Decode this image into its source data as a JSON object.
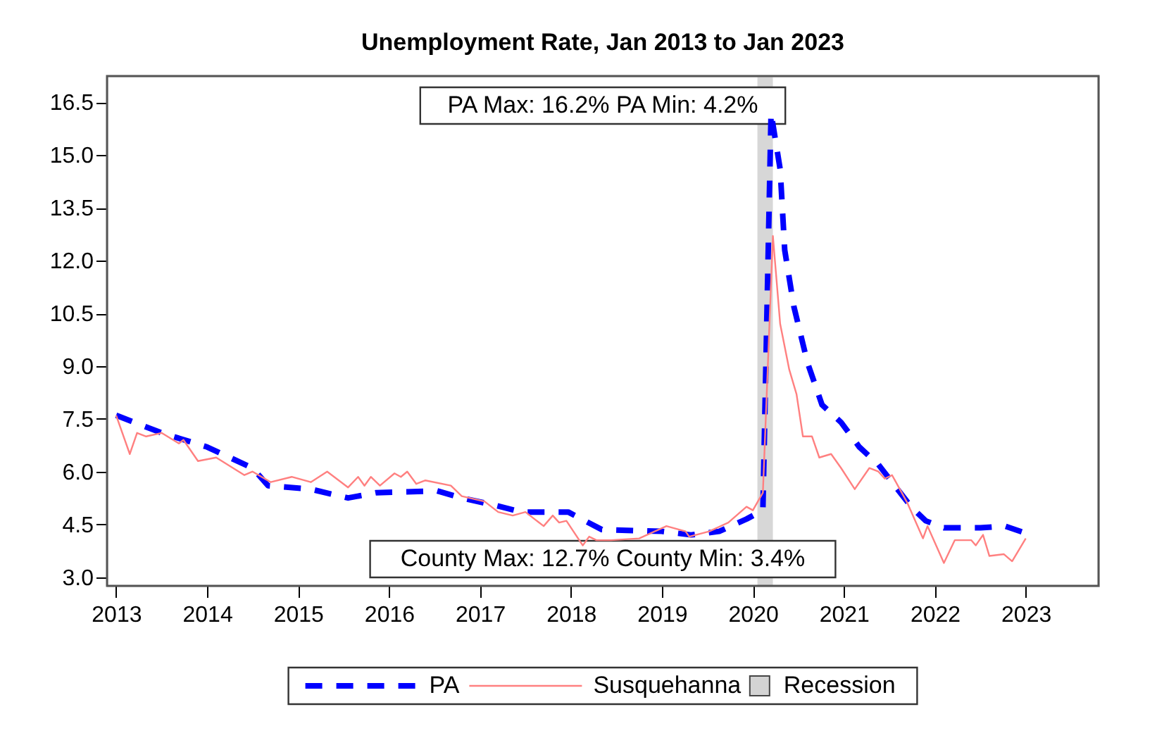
{
  "chart_data": {
    "type": "line",
    "title": "Unemployment Rate, Jan 2013 to Jan 2023",
    "xlim": [
      2012.9,
      2023.8
    ],
    "xticks": [
      2013,
      2014,
      2015,
      2016,
      2017,
      2018,
      2019,
      2020,
      2021,
      2022,
      2023
    ],
    "ylim": [
      2.75,
      17.25
    ],
    "yticks": [
      {
        "value": 3,
        "label": "3.0"
      },
      4.5,
      {
        "value": 6,
        "label": "6.0"
      },
      7.5,
      {
        "value": 9,
        "label": "9.0"
      },
      10.5,
      {
        "value": 12,
        "label": "12.0"
      },
      13.5,
      {
        "value": 15,
        "label": "15.0"
      },
      16.5
    ],
    "grid": false,
    "legend": "bottom",
    "series": [
      {
        "name": "PA",
        "color": "#0000ff",
        "line_style": "dashed",
        "x": [
          2013.0,
          2013.5,
          2014.0,
          2014.5,
          2014.67,
          2015.14,
          2015.55,
          2015.86,
          2016.53,
          2016.8,
          2017.15,
          2017.46,
          2017.97,
          2018.34,
          2019.0,
          2019.32,
          2019.63,
          2019.93,
          2020.11,
          2020.2,
          2020.3,
          2020.35,
          2020.45,
          2020.6,
          2020.76,
          2020.97,
          2021.17,
          2021.38,
          2021.59,
          2021.74,
          2021.9,
          2022.1,
          2022.5,
          2022.77,
          2023.0
        ],
        "values": [
          7.6,
          7.1,
          6.7,
          6.1,
          5.6,
          5.5,
          5.25,
          5.4,
          5.45,
          5.25,
          5.05,
          4.85,
          4.85,
          4.35,
          4.3,
          4.2,
          4.3,
          4.65,
          4.9,
          16.2,
          14.6,
          12.3,
          10.7,
          9.1,
          7.9,
          7.4,
          6.7,
          6.2,
          5.5,
          5.0,
          4.6,
          4.4,
          4.4,
          4.45,
          4.25
        ]
      },
      {
        "name": "Susquehanna",
        "color": "#ff8080",
        "line_style": "solid",
        "x": [
          2013.0,
          2013.15,
          2013.23,
          2013.33,
          2013.5,
          2013.69,
          2013.74,
          2013.9,
          2014.1,
          2014.41,
          2014.5,
          2014.7,
          2014.93,
          2015.14,
          2015.32,
          2015.55,
          2015.66,
          2015.73,
          2015.8,
          2015.9,
          2016.06,
          2016.13,
          2016.2,
          2016.3,
          2016.4,
          2016.68,
          2016.8,
          2017.05,
          2017.2,
          2017.36,
          2017.5,
          2017.7,
          2017.8,
          2017.87,
          2017.95,
          2018.13,
          2018.2,
          2018.28,
          2018.44,
          2018.75,
          2019.05,
          2019.26,
          2019.3,
          2019.52,
          2019.73,
          2019.93,
          2020.0,
          2020.11,
          2020.22,
          2020.3,
          2020.4,
          2020.48,
          2020.55,
          2020.65,
          2020.73,
          2020.86,
          2020.97,
          2021.12,
          2021.28,
          2021.38,
          2021.45,
          2021.53,
          2021.7,
          2021.87,
          2021.92,
          2022.1,
          2022.22,
          2022.4,
          2022.45,
          2022.53,
          2022.6,
          2022.76,
          2022.85,
          2023.0
        ],
        "values": [
          7.6,
          6.5,
          7.1,
          7.0,
          7.1,
          6.8,
          6.9,
          6.3,
          6.4,
          5.9,
          6.0,
          5.7,
          5.85,
          5.7,
          6.0,
          5.55,
          5.85,
          5.6,
          5.85,
          5.6,
          5.95,
          5.85,
          6.0,
          5.65,
          5.75,
          5.6,
          5.3,
          5.15,
          4.85,
          4.75,
          4.85,
          4.45,
          4.75,
          4.55,
          4.6,
          3.9,
          4.15,
          4.05,
          4.05,
          4.1,
          4.45,
          4.3,
          4.15,
          4.3,
          4.55,
          5.0,
          4.9,
          5.4,
          12.7,
          10.2,
          8.9,
          8.2,
          7.0,
          7.0,
          6.4,
          6.5,
          6.1,
          5.5,
          6.1,
          6.0,
          5.8,
          5.9,
          5.1,
          4.1,
          4.45,
          3.4,
          4.05,
          4.05,
          3.9,
          4.2,
          3.6,
          3.65,
          3.45,
          4.1
        ]
      }
    ],
    "bands": [
      {
        "axis": "x",
        "from": 2020.05,
        "to": 2020.22,
        "label": "Recession",
        "color": "#d3d3d3"
      }
    ],
    "annotations": [
      "PA Max: 16.2%   PA Min: 4.2%",
      "County Max: 12.7%   County Min: 3.4%"
    ]
  }
}
